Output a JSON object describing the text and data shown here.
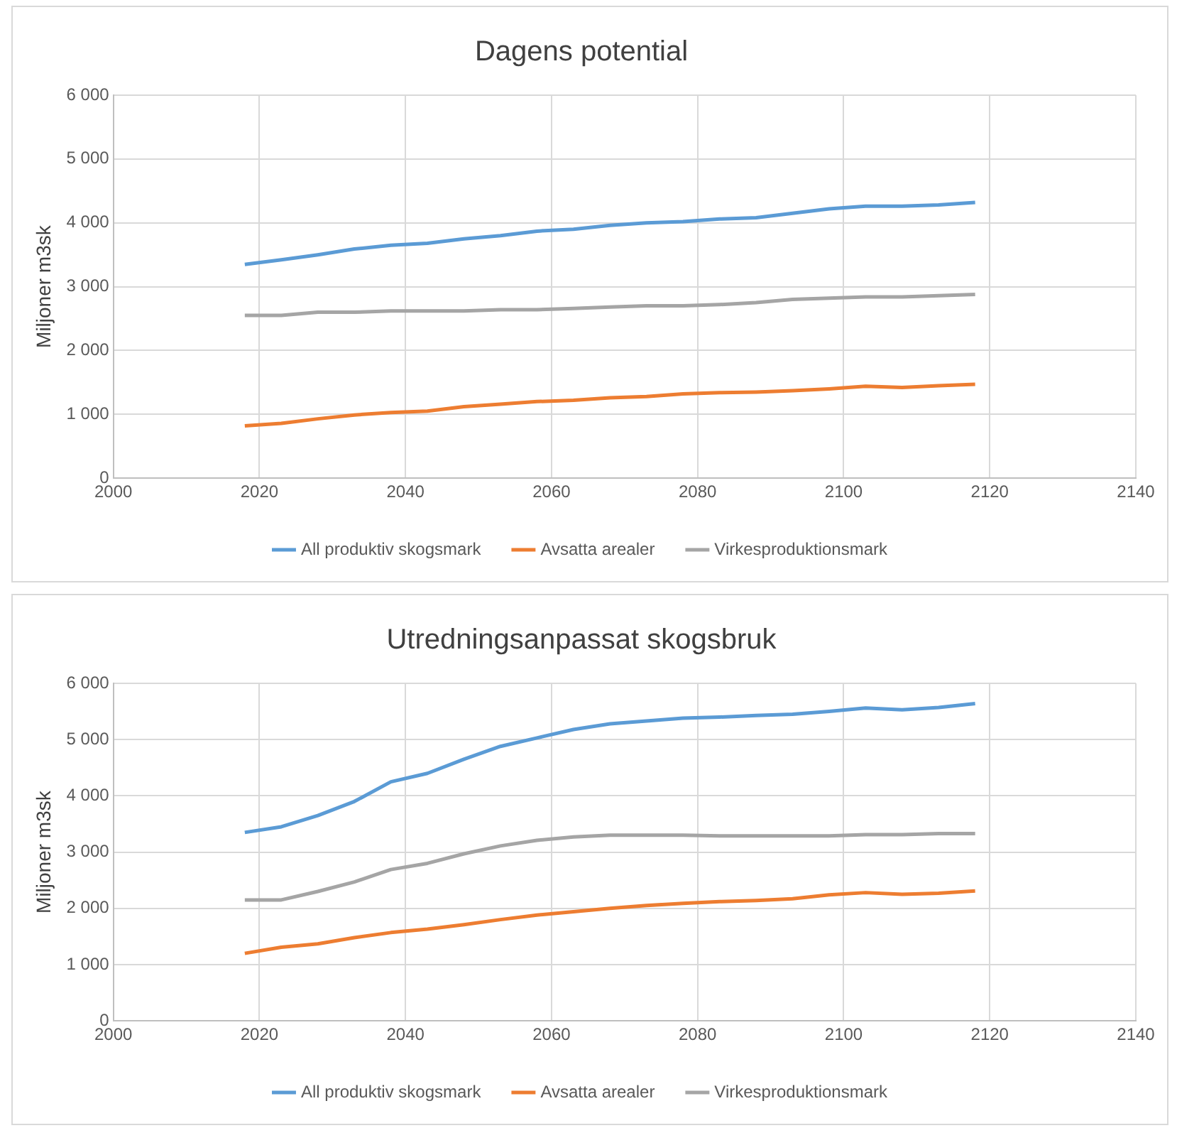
{
  "chart_data": [
    {
      "type": "line",
      "title": "Dagens potential",
      "ylabel": "Miljoner m3sk",
      "x": [
        2018,
        2023,
        2028,
        2033,
        2038,
        2043,
        2048,
        2053,
        2058,
        2063,
        2068,
        2073,
        2078,
        2083,
        2088,
        2093,
        2098,
        2103,
        2108,
        2113,
        2118
      ],
      "series": [
        {
          "name": "All produktiv skogsmark",
          "color": "#5b9bd5",
          "values": [
            3350,
            3420,
            3500,
            3590,
            3650,
            3680,
            3750,
            3800,
            3870,
            3900,
            3960,
            4000,
            4020,
            4060,
            4080,
            4150,
            4220,
            4260,
            4260,
            4280,
            4320
          ]
        },
        {
          "name": "Avsatta arealer",
          "color": "#ed7d31",
          "values": [
            820,
            860,
            930,
            990,
            1030,
            1050,
            1120,
            1160,
            1200,
            1220,
            1260,
            1280,
            1320,
            1340,
            1350,
            1370,
            1400,
            1440,
            1420,
            1450,
            1470
          ]
        },
        {
          "name": "Virkesproduktionsmark",
          "color": "#a5a5a5",
          "values": [
            2550,
            2550,
            2600,
            2600,
            2620,
            2620,
            2620,
            2640,
            2640,
            2660,
            2680,
            2700,
            2700,
            2720,
            2750,
            2800,
            2820,
            2840,
            2840,
            2860,
            2880
          ]
        }
      ],
      "xlim": [
        2000,
        2140
      ],
      "xticks": [
        2000,
        2020,
        2040,
        2060,
        2080,
        2100,
        2120,
        2140
      ],
      "ylim": [
        0,
        6000
      ],
      "yticks": [
        0,
        {
          "value": 1000,
          "label": "1 000"
        },
        {
          "value": 2000,
          "label": "2 000"
        },
        {
          "value": 3000,
          "label": "3 000"
        },
        {
          "value": 4000,
          "label": "4 000"
        },
        {
          "value": 5000,
          "label": "5 000"
        },
        {
          "value": 6000,
          "label": "6 000"
        }
      ],
      "grid": true,
      "legend": "bottom",
      "marker": "none",
      "line_style": "solid"
    },
    {
      "type": "line",
      "title": "Utredningsanpassat skogsbruk",
      "ylabel": "Miljoner m3sk",
      "x": [
        2018,
        2023,
        2028,
        2033,
        2038,
        2043,
        2048,
        2053,
        2058,
        2063,
        2068,
        2073,
        2078,
        2083,
        2088,
        2093,
        2098,
        2103,
        2108,
        2113,
        2118
      ],
      "series": [
        {
          "name": "All produktiv skogsmark",
          "color": "#5b9bd5",
          "values": [
            3350,
            3450,
            3650,
            3900,
            4250,
            4400,
            4650,
            4880,
            5030,
            5180,
            5280,
            5330,
            5380,
            5400,
            5430,
            5450,
            5500,
            5560,
            5530,
            5570,
            5640
          ]
        },
        {
          "name": "Avsatta arealer",
          "color": "#ed7d31",
          "values": [
            1200,
            1310,
            1370,
            1480,
            1570,
            1630,
            1710,
            1800,
            1880,
            1940,
            2000,
            2050,
            2090,
            2120,
            2140,
            2170,
            2240,
            2280,
            2250,
            2270,
            2310
          ]
        },
        {
          "name": "Virkesproduktionsmark",
          "color": "#a5a5a5",
          "values": [
            2150,
            2150,
            2300,
            2470,
            2690,
            2800,
            2970,
            3110,
            3210,
            3270,
            3300,
            3300,
            3300,
            3290,
            3290,
            3290,
            3290,
            3310,
            3310,
            3330,
            3330
          ]
        }
      ],
      "xlim": [
        2000,
        2140
      ],
      "xticks": [
        2000,
        2020,
        2040,
        2060,
        2080,
        2100,
        2120,
        2140
      ],
      "ylim": [
        0,
        6000
      ],
      "yticks": [
        0,
        {
          "value": 1000,
          "label": "1 000"
        },
        {
          "value": 2000,
          "label": "2 000"
        },
        {
          "value": 3000,
          "label": "3 000"
        },
        {
          "value": 4000,
          "label": "4 000"
        },
        {
          "value": 5000,
          "label": "5 000"
        },
        {
          "value": 6000,
          "label": "6 000"
        }
      ],
      "grid": true,
      "legend": "bottom",
      "marker": "none",
      "line_style": "solid"
    }
  ]
}
